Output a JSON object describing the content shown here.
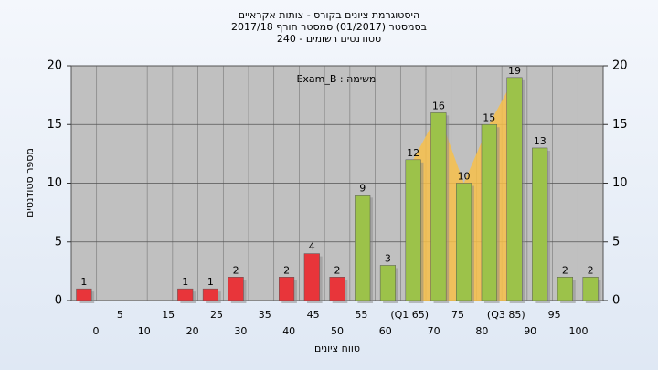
{
  "chart_data": {
    "type": "bar",
    "title": [
      "היסטוגרמת ציונים בקורס - צותות אקראיים",
      "בסמסטר (01/2017) סמסטר חורף 2017/18",
      "סטודנטים רשומים - 240"
    ],
    "annotation": "Exam_B : משימה",
    "x_label": "טווח ציונים",
    "y_label": "מספר סטודנטים",
    "categories": [
      "0",
      "5",
      "10",
      "15",
      "20",
      "25",
      "30",
      "35",
      "40",
      "45",
      "50",
      "55",
      "60",
      "(Q1 65)",
      "70",
      "75",
      "80",
      "(Q3 85)",
      "90",
      "95",
      "100"
    ],
    "values": [
      1,
      0,
      0,
      0,
      1,
      1,
      2,
      0,
      2,
      4,
      2,
      9,
      3,
      12,
      16,
      10,
      15,
      19,
      13,
      2,
      2
    ],
    "bar_colors": [
      "#e8353a",
      "#e8353a",
      "#e8353a",
      "#e8353a",
      "#e8353a",
      "#e8353a",
      "#e8353a",
      "#e8353a",
      "#e8353a",
      "#e8353a",
      "#e8353a",
      "#9cc24a",
      "#9cc24a",
      "#9cc24a",
      "#9cc24a",
      "#9cc24a",
      "#9cc24a",
      "#9cc24a",
      "#9cc24a",
      "#9cc24a",
      "#9cc24a"
    ],
    "quartile_area_color": "#f7c04a",
    "ylim": [
      0,
      20
    ],
    "yticks": [
      0,
      5,
      10,
      15,
      20
    ],
    "y2lim": [
      0,
      20
    ],
    "y2ticks": [
      0,
      5,
      10,
      15,
      20
    ],
    "grid": true
  }
}
